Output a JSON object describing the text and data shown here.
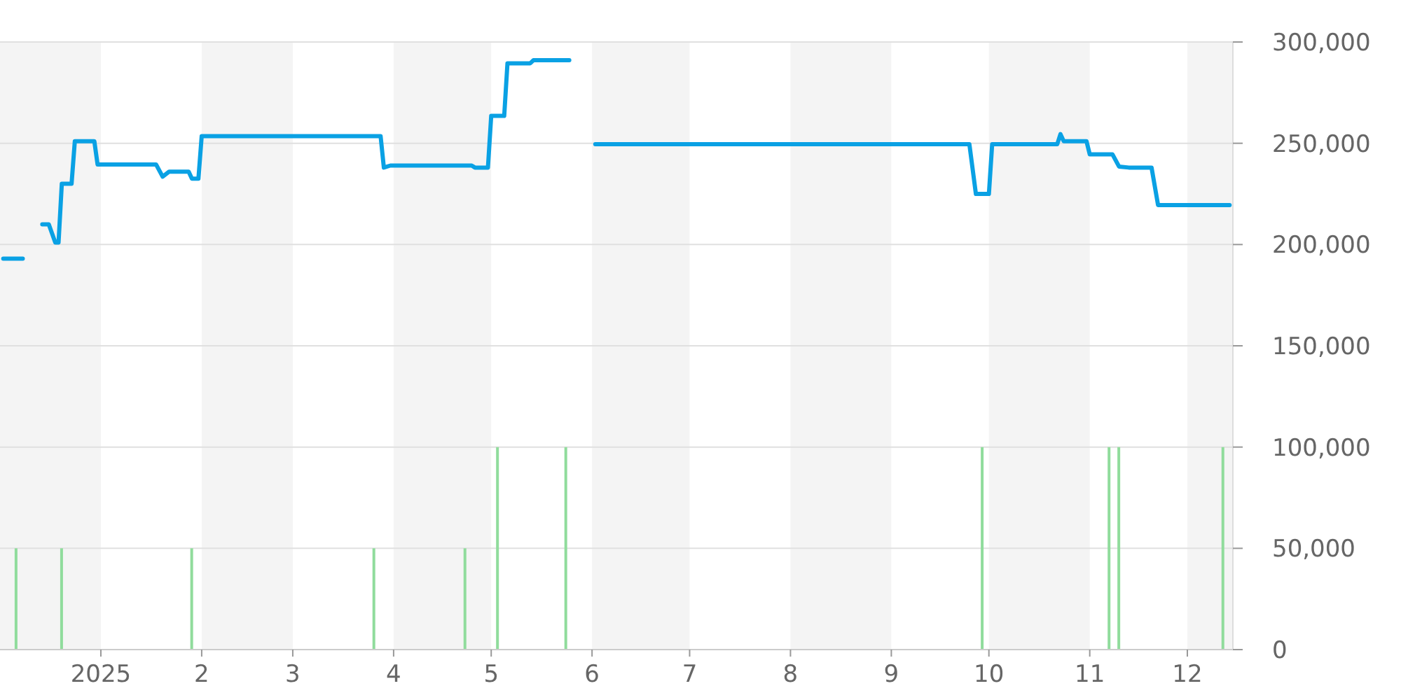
{
  "chart_data": {
    "type": "line",
    "xlim": [
      "2024-12-01",
      "2025-12-15"
    ],
    "xticks": [
      {
        "value": "2025-01-01",
        "label": "2025"
      },
      {
        "value": "2025-02-01",
        "label": "2"
      },
      {
        "value": "2025-03-01",
        "label": "3"
      },
      {
        "value": "2025-04-01",
        "label": "4"
      },
      {
        "value": "2025-05-01",
        "label": "5"
      },
      {
        "value": "2025-06-01",
        "label": "6"
      },
      {
        "value": "2025-07-01",
        "label": "7"
      },
      {
        "value": "2025-08-01",
        "label": "8"
      },
      {
        "value": "2025-09-01",
        "label": "9"
      },
      {
        "value": "2025-10-01",
        "label": "10"
      },
      {
        "value": "2025-11-01",
        "label": "11"
      },
      {
        "value": "2025-12-01",
        "label": "12"
      }
    ],
    "ylim": [
      0,
      300000
    ],
    "yticks": [
      0,
      {
        "value": 50000,
        "label": "50,000"
      },
      {
        "value": 100000,
        "label": "100,000"
      },
      {
        "value": 150000,
        "label": "150,000"
      },
      {
        "value": 200000,
        "label": "200,000"
      },
      {
        "value": 250000,
        "label": "250,000"
      },
      {
        "value": 300000,
        "label": "300,000"
      }
    ],
    "grid": "y",
    "bands": [
      {
        "axis": "x",
        "from": "2024-12-01",
        "to": "2025-01-01",
        "color": "#f4f4f4"
      },
      {
        "axis": "x",
        "from": "2025-02-01",
        "to": "2025-03-01",
        "color": "#f4f4f4"
      },
      {
        "axis": "x",
        "from": "2025-04-01",
        "to": "2025-05-01",
        "color": "#f4f4f4"
      },
      {
        "axis": "x",
        "from": "2025-06-01",
        "to": "2025-07-01",
        "color": "#f4f4f4"
      },
      {
        "axis": "x",
        "from": "2025-08-01",
        "to": "2025-09-01",
        "color": "#f4f4f4"
      },
      {
        "axis": "x",
        "from": "2025-10-01",
        "to": "2025-11-01",
        "color": "#f4f4f4"
      },
      {
        "axis": "x",
        "from": "2025-12-01",
        "to": "2025-12-15",
        "color": "#f4f4f4"
      }
    ],
    "series": [
      {
        "color": "#0aa1e4",
        "x": [
          "2024-12-02",
          "2024-12-08",
          "2024-12-11",
          "2024-12-14",
          "2024-12-16",
          "2024-12-18",
          "2024-12-19",
          "2024-12-20",
          "2024-12-23",
          "2024-12-24",
          "2024-12-30",
          "2024-12-31",
          "2025-01-18",
          "2025-01-20",
          "2025-01-22",
          "2025-01-28",
          "2025-01-29",
          "2025-01-31",
          "2025-02-01",
          "2025-03-28",
          "2025-03-29",
          "2025-03-31",
          "2025-04-25",
          "2025-04-26",
          "2025-04-30",
          "2025-05-01",
          "2025-05-05",
          "2025-05-06",
          "2025-05-13",
          "2025-05-14",
          "2025-05-25",
          "2025-05-29",
          "2025-06-02",
          "2025-09-25",
          "2025-09-27",
          "2025-10-01",
          "2025-10-02",
          "2025-10-22",
          "2025-10-23",
          "2025-10-24",
          "2025-10-31",
          "2025-11-01",
          "2025-11-08",
          "2025-11-10",
          "2025-11-13",
          "2025-11-20",
          "2025-11-22",
          "2025-12-14"
        ],
        "values": [
          193000,
          193000,
          null,
          210000,
          210000,
          201000,
          201000,
          230000,
          230000,
          251000,
          251000,
          239500,
          239500,
          233500,
          236000,
          236000,
          232500,
          232500,
          253500,
          253500,
          238000,
          239000,
          239000,
          238000,
          238000,
          263500,
          263500,
          289500,
          289500,
          291000,
          291000,
          null,
          249500,
          249500,
          225000,
          225000,
          249500,
          249500,
          254500,
          251000,
          251000,
          244500,
          244500,
          238500,
          238000,
          238000,
          219500,
          219500
        ]
      },
      {
        "type": "bar",
        "color": "#90dc9c",
        "x": [
          "2024-12-06",
          "2024-12-20",
          "2025-01-29",
          "2025-03-26",
          "2025-04-23",
          "2025-05-03",
          "2025-05-24",
          "2025-09-29",
          "2025-11-07",
          "2025-11-10",
          "2025-12-12"
        ],
        "values": [
          50000,
          50000,
          50000,
          50000,
          50000,
          100000,
          100000,
          100000,
          100000,
          100000,
          100000
        ]
      }
    ]
  }
}
